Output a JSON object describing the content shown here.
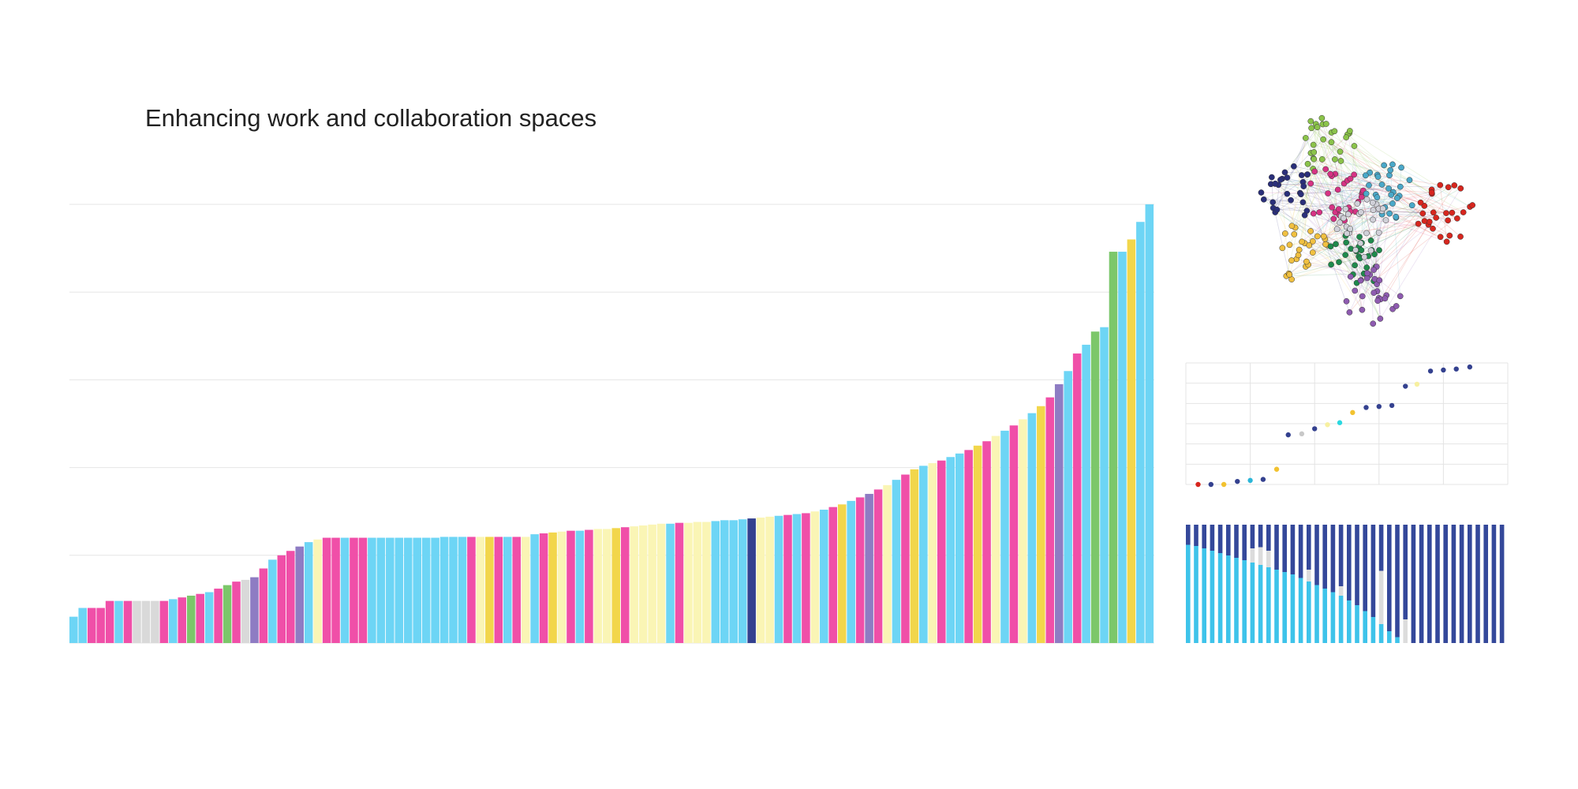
{
  "title": "Enhancing work and collaboration spaces",
  "chart_data": [
    {
      "type": "bar",
      "ylim": [
        0,
        5
      ],
      "yticks": [
        0,
        1,
        2,
        3,
        4,
        5
      ],
      "grid": true,
      "values": [
        0.3,
        0.4,
        0.4,
        0.4,
        0.48,
        0.48,
        0.48,
        0.48,
        0.48,
        0.48,
        0.48,
        0.5,
        0.52,
        0.54,
        0.56,
        0.58,
        0.62,
        0.66,
        0.7,
        0.72,
        0.75,
        0.85,
        0.95,
        1.0,
        1.05,
        1.1,
        1.15,
        1.18,
        1.2,
        1.2,
        1.2,
        1.2,
        1.2,
        1.2,
        1.2,
        1.2,
        1.2,
        1.2,
        1.2,
        1.2,
        1.2,
        1.21,
        1.21,
        1.21,
        1.21,
        1.21,
        1.21,
        1.21,
        1.21,
        1.21,
        1.21,
        1.24,
        1.25,
        1.26,
        1.27,
        1.28,
        1.28,
        1.29,
        1.3,
        1.3,
        1.31,
        1.32,
        1.33,
        1.34,
        1.35,
        1.36,
        1.36,
        1.37,
        1.37,
        1.38,
        1.38,
        1.39,
        1.4,
        1.4,
        1.41,
        1.42,
        1.43,
        1.44,
        1.45,
        1.46,
        1.47,
        1.48,
        1.5,
        1.52,
        1.55,
        1.58,
        1.62,
        1.66,
        1.7,
        1.75,
        1.8,
        1.86,
        1.92,
        1.98,
        2.02,
        2.05,
        2.08,
        2.12,
        2.16,
        2.2,
        2.25,
        2.3,
        2.36,
        2.42,
        2.48,
        2.55,
        2.62,
        2.7,
        2.8,
        2.95,
        3.1,
        3.3,
        3.4,
        3.55,
        3.6,
        4.46,
        4.46,
        4.6,
        4.8,
        5.0
      ],
      "colors": [
        "#6dd5f5",
        "#6dd5f5",
        "#f04fa8",
        "#f04fa8",
        "#f04fa8",
        "#6dd5f5",
        "#f04fa8",
        "#d9d9d9",
        "#d9d9d9",
        "#d9d9d9",
        "#f04fa8",
        "#6dd5f5",
        "#f04fa8",
        "#7cc76a",
        "#f04fa8",
        "#6dd5f5",
        "#f04fa8",
        "#7cc76a",
        "#f04fa8",
        "#d9d9d9",
        "#8e7cc3",
        "#f04fa8",
        "#6dd5f5",
        "#f04fa8",
        "#f04fa8",
        "#8e7cc3",
        "#6dd5f5",
        "#faf5b5",
        "#f04fa8",
        "#f04fa8",
        "#6dd5f5",
        "#f04fa8",
        "#f04fa8",
        "#6dd5f5",
        "#6dd5f5",
        "#6dd5f5",
        "#6dd5f5",
        "#6dd5f5",
        "#6dd5f5",
        "#6dd5f5",
        "#6dd5f5",
        "#6dd5f5",
        "#6dd5f5",
        "#6dd5f5",
        "#f04fa8",
        "#faf5b5",
        "#f2d64b",
        "#f04fa8",
        "#6dd5f5",
        "#f04fa8",
        "#faf5b5",
        "#6dd5f5",
        "#f04fa8",
        "#f2d64b",
        "#faf5b5",
        "#f04fa8",
        "#6dd5f5",
        "#f04fa8",
        "#faf5b5",
        "#faf5b5",
        "#f2d64b",
        "#f04fa8",
        "#faf5b5",
        "#faf5b5",
        "#faf5b5",
        "#faf5b5",
        "#6dd5f5",
        "#f04fa8",
        "#faf5b5",
        "#faf5b5",
        "#faf5b5",
        "#6dd5f5",
        "#6dd5f5",
        "#6dd5f5",
        "#6dd5f5",
        "#34418f",
        "#faf5b5",
        "#faf5b5",
        "#6dd5f5",
        "#f04fa8",
        "#6dd5f5",
        "#f04fa8",
        "#faf5b5",
        "#6dd5f5",
        "#f04fa8",
        "#f2d64b",
        "#6dd5f5",
        "#f04fa8",
        "#8e7cc3",
        "#f04fa8",
        "#faf5b5",
        "#6dd5f5",
        "#f04fa8",
        "#f2d64b",
        "#6dd5f5",
        "#faf5b5",
        "#f04fa8",
        "#6dd5f5",
        "#6dd5f5",
        "#f04fa8",
        "#f2d64b",
        "#f04fa8",
        "#faf5b5",
        "#6dd5f5",
        "#f04fa8",
        "#faf5b5",
        "#6dd5f5",
        "#f2d64b",
        "#f04fa8",
        "#8e7cc3",
        "#6dd5f5",
        "#f04fa8",
        "#6dd5f5",
        "#7cc76a",
        "#6dd5f5",
        "#7cc76a",
        "#6dd5f5",
        "#f2d64b",
        "#6dd5f5",
        "#6dd5f5"
      ]
    },
    {
      "type": "scatter",
      "xlim": [
        0,
        5
      ],
      "xticks": [
        0,
        1,
        2,
        3,
        4,
        5
      ],
      "ylim": [
        0,
        6
      ],
      "yticks": [
        0,
        1,
        2,
        3,
        4,
        5,
        6
      ],
      "grid": true,
      "x": [
        0.19,
        0.39,
        0.59,
        0.8,
        1.0,
        1.2,
        1.41,
        1.59,
        1.8,
        2.0,
        2.2,
        2.39,
        2.59,
        2.8,
        3.0,
        3.2,
        3.41,
        3.59,
        3.8,
        4.0,
        4.2,
        4.41
      ],
      "values": [
        0,
        0,
        0,
        0.15,
        0.2,
        0.25,
        0.75,
        2.45,
        2.5,
        2.75,
        2.95,
        3.05,
        3.55,
        3.8,
        3.85,
        3.9,
        4.85,
        4.95,
        5.6,
        5.65,
        5.7,
        5.8
      ],
      "colors": [
        "#d7261e",
        "#34418f",
        "#f2c230",
        "#34418f",
        "#2bb6d8",
        "#34418f",
        "#f2c230",
        "#34418f",
        "#c8c8c8",
        "#34418f",
        "#f7f0a0",
        "#2bd8e0",
        "#f2c230",
        "#34418f",
        "#34418f",
        "#34418f",
        "#34418f",
        "#f7f0a0",
        "#34418f",
        "#34418f",
        "#34418f",
        "#34418f"
      ]
    },
    {
      "type": "stacked-bar",
      "ylim": [
        0,
        100
      ],
      "series": [
        {
          "color": "#3ec3ea",
          "values": [
            83,
            82,
            80,
            78,
            76,
            74,
            72,
            70,
            68,
            66,
            64,
            62,
            60,
            58,
            55,
            52,
            49,
            46,
            43,
            40,
            36,
            32,
            27,
            22,
            16,
            10,
            5,
            0,
            0,
            0,
            0,
            0,
            0,
            0,
            0,
            0,
            0,
            0,
            0,
            0
          ]
        },
        {
          "color": "#dcdcdc",
          "values": [
            0,
            0,
            0,
            0,
            0,
            0,
            0,
            0,
            12,
            15,
            14,
            0,
            0,
            0,
            0,
            10,
            0,
            0,
            0,
            8,
            0,
            0,
            0,
            0,
            45,
            0,
            0,
            20,
            0,
            0,
            0,
            0,
            0,
            0,
            0,
            0,
            0,
            0,
            0,
            0
          ]
        },
        {
          "color": "#34489a",
          "values": [
            17,
            18,
            20,
            22,
            24,
            26,
            28,
            30,
            20,
            19,
            22,
            38,
            40,
            42,
            45,
            38,
            51,
            54,
            57,
            52,
            64,
            68,
            73,
            78,
            39,
            90,
            95,
            80,
            100,
            100,
            100,
            100,
            100,
            100,
            100,
            100,
            100,
            100,
            100,
            100
          ]
        }
      ]
    }
  ]
}
